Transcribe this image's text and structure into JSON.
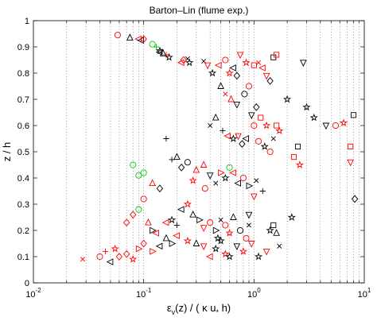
{
  "chart_data": {
    "type": "scatter",
    "title": "Barton–Lin (flume exp.)",
    "xlabel_parts": {
      "main": "ε",
      "sub": "v",
      "rest": "(z) / ( κ u",
      "sub2": "*",
      "end": " h)"
    },
    "ylabel": "z / h",
    "xscale": "log",
    "xlim": [
      0.01,
      10
    ],
    "ylim": [
      0,
      1
    ],
    "x_ticks": [
      {
        "value": 0.01,
        "base": "10",
        "exp": "-2"
      },
      {
        "value": 0.1,
        "base": "10",
        "exp": "-1"
      },
      {
        "value": 1,
        "base": "10",
        "exp": "0"
      },
      {
        "value": 10,
        "base": "10",
        "exp": "1"
      }
    ],
    "y_ticks": [
      "0",
      "0.1",
      "0.2",
      "0.3",
      "0.4",
      "0.5",
      "0.6",
      "0.7",
      "0.8",
      "0.9",
      "1"
    ],
    "grid": {
      "x_minor_dotted": true,
      "y_major": false
    },
    "colors": {
      "red": "#ff0000",
      "black": "#000000",
      "green": "#00cc00"
    },
    "points": [
      {
        "x": 0.058,
        "y": 0.945,
        "m": "circle",
        "c": "red"
      },
      {
        "x": 0.075,
        "y": 0.935,
        "m": "triangle-up",
        "c": "black"
      },
      {
        "x": 0.09,
        "y": 0.93,
        "m": "triangle-left",
        "c": "red"
      },
      {
        "x": 0.095,
        "y": 0.925,
        "m": "triangle-left",
        "c": "black"
      },
      {
        "x": 0.1,
        "y": 0.93,
        "m": "diamond",
        "c": "red"
      },
      {
        "x": 0.12,
        "y": 0.91,
        "m": "circle",
        "c": "green"
      },
      {
        "x": 0.13,
        "y": 0.9,
        "m": "plus",
        "c": "green"
      },
      {
        "x": 0.14,
        "y": 0.885,
        "m": "star",
        "c": "black"
      },
      {
        "x": 0.15,
        "y": 0.875,
        "m": "triangle-up",
        "c": "black"
      },
      {
        "x": 0.16,
        "y": 0.87,
        "m": "plus",
        "c": "red"
      },
      {
        "x": 0.17,
        "y": 0.86,
        "m": "star",
        "c": "black"
      },
      {
        "x": 0.14,
        "y": 0.88,
        "m": "triangle-left",
        "c": "black"
      },
      {
        "x": 0.22,
        "y": 0.84,
        "m": "triangle-left",
        "c": "red"
      },
      {
        "x": 0.25,
        "y": 0.855,
        "m": "x",
        "c": "black"
      },
      {
        "x": 0.26,
        "y": 0.84,
        "m": "star",
        "c": "black"
      },
      {
        "x": 0.23,
        "y": 0.85,
        "m": "diamond",
        "c": "red"
      },
      {
        "x": 0.35,
        "y": 0.845,
        "m": "x",
        "c": "black"
      },
      {
        "x": 0.38,
        "y": 0.83,
        "m": "triangle-down",
        "c": "red"
      },
      {
        "x": 0.42,
        "y": 0.8,
        "m": "star",
        "c": "black"
      },
      {
        "x": 0.48,
        "y": 0.83,
        "m": "triangle-left",
        "c": "red"
      },
      {
        "x": 0.55,
        "y": 0.85,
        "m": "circle",
        "c": "red"
      },
      {
        "x": 0.6,
        "y": 0.8,
        "m": "star",
        "c": "red"
      },
      {
        "x": 0.65,
        "y": 0.82,
        "m": "triangle-left",
        "c": "black"
      },
      {
        "x": 0.7,
        "y": 0.79,
        "m": "diamond",
        "c": "black"
      },
      {
        "x": 0.75,
        "y": 0.87,
        "m": "triangle-down",
        "c": "red"
      },
      {
        "x": 0.85,
        "y": 0.84,
        "m": "star",
        "c": "red"
      },
      {
        "x": 0.9,
        "y": 0.75,
        "m": "circle",
        "c": "red"
      },
      {
        "x": 1.0,
        "y": 0.83,
        "m": "square",
        "c": "red"
      },
      {
        "x": 1.1,
        "y": 0.84,
        "m": "x",
        "c": "red"
      },
      {
        "x": 1.2,
        "y": 0.82,
        "m": "triangle-left",
        "c": "red"
      },
      {
        "x": 1.3,
        "y": 0.79,
        "m": "triangle-down",
        "c": "red"
      },
      {
        "x": 1.5,
        "y": 0.86,
        "m": "square",
        "c": "black"
      },
      {
        "x": 1.6,
        "y": 0.87,
        "m": "square",
        "c": "red"
      },
      {
        "x": 1.4,
        "y": 0.77,
        "m": "diamond",
        "c": "black"
      },
      {
        "x": 2.8,
        "y": 0.84,
        "m": "triangle-down",
        "c": "black"
      },
      {
        "x": 3.0,
        "y": 0.67,
        "m": "star",
        "c": "black"
      },
      {
        "x": 3.5,
        "y": 0.63,
        "m": "star",
        "c": "black"
      },
      {
        "x": 2.0,
        "y": 0.7,
        "m": "star",
        "c": "black"
      },
      {
        "x": 0.5,
        "y": 0.75,
        "m": "triangle-up",
        "c": "black"
      },
      {
        "x": 0.55,
        "y": 0.72,
        "m": "x",
        "c": "red"
      },
      {
        "x": 0.62,
        "y": 0.7,
        "m": "triangle-up",
        "c": "red"
      },
      {
        "x": 0.7,
        "y": 0.68,
        "m": "triangle-down",
        "c": "black"
      },
      {
        "x": 0.82,
        "y": 0.72,
        "m": "circle",
        "c": "black"
      },
      {
        "x": 0.95,
        "y": 0.64,
        "m": "triangle-down",
        "c": "black"
      },
      {
        "x": 1.0,
        "y": 0.6,
        "m": "circle",
        "c": "red"
      },
      {
        "x": 1.05,
        "y": 0.67,
        "m": "diamond",
        "c": "black"
      },
      {
        "x": 1.15,
        "y": 0.63,
        "m": "square",
        "c": "red"
      },
      {
        "x": 1.3,
        "y": 0.6,
        "m": "star",
        "c": "red"
      },
      {
        "x": 1.6,
        "y": 0.6,
        "m": "square",
        "c": "red"
      },
      {
        "x": 1.7,
        "y": 0.58,
        "m": "star",
        "c": "red"
      },
      {
        "x": 0.45,
        "y": 0.63,
        "m": "triangle-up",
        "c": "black"
      },
      {
        "x": 0.4,
        "y": 0.6,
        "m": "x",
        "c": "black"
      },
      {
        "x": 0.52,
        "y": 0.58,
        "m": "plus",
        "c": "black"
      },
      {
        "x": 0.58,
        "y": 0.56,
        "m": "triangle-left",
        "c": "red"
      },
      {
        "x": 0.65,
        "y": 0.55,
        "m": "star",
        "c": "black"
      },
      {
        "x": 0.72,
        "y": 0.56,
        "m": "triangle-down",
        "c": "red"
      },
      {
        "x": 0.78,
        "y": 0.53,
        "m": "diamond",
        "c": "black"
      },
      {
        "x": 0.85,
        "y": 0.55,
        "m": "triangle-left",
        "c": "black"
      },
      {
        "x": 1.1,
        "y": 0.54,
        "m": "circle",
        "c": "red"
      },
      {
        "x": 1.25,
        "y": 0.52,
        "m": "star",
        "c": "black"
      },
      {
        "x": 1.4,
        "y": 0.5,
        "m": "circle",
        "c": "red"
      },
      {
        "x": 1.5,
        "y": 0.55,
        "m": "x",
        "c": "black"
      },
      {
        "x": 2.5,
        "y": 0.52,
        "m": "square",
        "c": "black"
      },
      {
        "x": 2.3,
        "y": 0.48,
        "m": "square",
        "c": "red"
      },
      {
        "x": 2.6,
        "y": 0.45,
        "m": "star",
        "c": "red"
      },
      {
        "x": 4.5,
        "y": 0.6,
        "m": "triangle-down",
        "c": "black"
      },
      {
        "x": 5.5,
        "y": 0.6,
        "m": "circle",
        "c": "red"
      },
      {
        "x": 6.5,
        "y": 0.61,
        "m": "star",
        "c": "red"
      },
      {
        "x": 8.0,
        "y": 0.64,
        "m": "square",
        "c": "black"
      },
      {
        "x": 7.5,
        "y": 0.46,
        "m": "triangle-down",
        "c": "red"
      },
      {
        "x": 7.5,
        "y": 0.52,
        "m": "square",
        "c": "red"
      },
      {
        "x": 8.2,
        "y": 0.32,
        "m": "diamond",
        "c": "black"
      },
      {
        "x": 0.16,
        "y": 0.55,
        "m": "plus",
        "c": "black"
      },
      {
        "x": 0.2,
        "y": 0.48,
        "m": "triangle-up",
        "c": "black"
      },
      {
        "x": 0.22,
        "y": 0.44,
        "m": "diamond",
        "c": "black"
      },
      {
        "x": 0.25,
        "y": 0.46,
        "m": "circle",
        "c": "black"
      },
      {
        "x": 0.18,
        "y": 0.47,
        "m": "plus",
        "c": "black"
      },
      {
        "x": 0.3,
        "y": 0.43,
        "m": "triangle-up",
        "c": "red"
      },
      {
        "x": 0.35,
        "y": 0.45,
        "m": "triangle-up",
        "c": "red"
      },
      {
        "x": 0.28,
        "y": 0.39,
        "m": "star",
        "c": "red"
      },
      {
        "x": 0.36,
        "y": 0.36,
        "m": "circle",
        "c": "red"
      },
      {
        "x": 0.4,
        "y": 0.41,
        "m": "triangle-down",
        "c": "black"
      },
      {
        "x": 0.45,
        "y": 0.38,
        "m": "x",
        "c": "black"
      },
      {
        "x": 0.5,
        "y": 0.42,
        "m": "triangle-right",
        "c": "red"
      },
      {
        "x": 0.55,
        "y": 0.4,
        "m": "star",
        "c": "black"
      },
      {
        "x": 0.6,
        "y": 0.44,
        "m": "circle",
        "c": "green"
      },
      {
        "x": 0.65,
        "y": 0.42,
        "m": "triangle-left",
        "c": "red"
      },
      {
        "x": 0.72,
        "y": 0.38,
        "m": "triangle-left",
        "c": "black"
      },
      {
        "x": 0.8,
        "y": 0.4,
        "m": "circle",
        "c": "red"
      },
      {
        "x": 0.9,
        "y": 0.37,
        "m": "triangle-right",
        "c": "black"
      },
      {
        "x": 1.05,
        "y": 0.39,
        "m": "x",
        "c": "black"
      },
      {
        "x": 1.2,
        "y": 0.35,
        "m": "plus",
        "c": "black"
      },
      {
        "x": 1.0,
        "y": 0.33,
        "m": "triangle-down",
        "c": "red"
      },
      {
        "x": 0.08,
        "y": 0.45,
        "m": "circle",
        "c": "green"
      },
      {
        "x": 0.09,
        "y": 0.41,
        "m": "circle",
        "c": "green"
      },
      {
        "x": 0.1,
        "y": 0.42,
        "m": "circle",
        "c": "green"
      },
      {
        "x": 0.12,
        "y": 0.38,
        "m": "triangle-up",
        "c": "red"
      },
      {
        "x": 0.14,
        "y": 0.36,
        "m": "diamond",
        "c": "black"
      },
      {
        "x": 0.1,
        "y": 0.32,
        "m": "circle",
        "c": "red"
      },
      {
        "x": 0.09,
        "y": 0.28,
        "m": "circle",
        "c": "green"
      },
      {
        "x": 0.08,
        "y": 0.26,
        "m": "diamond",
        "c": "red"
      },
      {
        "x": 0.07,
        "y": 0.23,
        "m": "diamond",
        "c": "red"
      },
      {
        "x": 0.11,
        "y": 0.23,
        "m": "triangle-up",
        "c": "red"
      },
      {
        "x": 0.12,
        "y": 0.2,
        "m": "triangle-right",
        "c": "black"
      },
      {
        "x": 0.13,
        "y": 0.19,
        "m": "triangle-left",
        "c": "red"
      },
      {
        "x": 0.16,
        "y": 0.23,
        "m": "triangle-left",
        "c": "red"
      },
      {
        "x": 0.18,
        "y": 0.24,
        "m": "star",
        "c": "black"
      },
      {
        "x": 0.2,
        "y": 0.22,
        "m": "plus",
        "c": "black"
      },
      {
        "x": 0.22,
        "y": 0.28,
        "m": "triangle-left",
        "c": "black"
      },
      {
        "x": 0.25,
        "y": 0.3,
        "m": "star",
        "c": "red"
      },
      {
        "x": 0.28,
        "y": 0.26,
        "m": "triangle-up",
        "c": "black"
      },
      {
        "x": 0.32,
        "y": 0.24,
        "m": "triangle-right",
        "c": "black"
      },
      {
        "x": 0.35,
        "y": 0.21,
        "m": "triangle-down",
        "c": "red"
      },
      {
        "x": 0.4,
        "y": 0.23,
        "m": "circle",
        "c": "red"
      },
      {
        "x": 0.45,
        "y": 0.2,
        "m": "triangle-right",
        "c": "black"
      },
      {
        "x": 0.5,
        "y": 0.24,
        "m": "x",
        "c": "black"
      },
      {
        "x": 0.55,
        "y": 0.22,
        "m": "circle",
        "c": "red"
      },
      {
        "x": 0.6,
        "y": 0.19,
        "m": "star",
        "c": "red"
      },
      {
        "x": 0.65,
        "y": 0.25,
        "m": "triangle-up",
        "c": "black"
      },
      {
        "x": 0.75,
        "y": 0.2,
        "m": "circle",
        "c": "black"
      },
      {
        "x": 0.9,
        "y": 0.26,
        "m": "triangle-down",
        "c": "black"
      },
      {
        "x": 1.5,
        "y": 0.22,
        "m": "square",
        "c": "black"
      },
      {
        "x": 1.6,
        "y": 0.19,
        "m": "triangle-up",
        "c": "black"
      },
      {
        "x": 2.2,
        "y": 0.25,
        "m": "star",
        "c": "black"
      },
      {
        "x": 1.4,
        "y": 0.2,
        "m": "star",
        "c": "black"
      },
      {
        "x": 0.028,
        "y": 0.09,
        "m": "x",
        "c": "red"
      },
      {
        "x": 0.04,
        "y": 0.1,
        "m": "circle",
        "c": "red"
      },
      {
        "x": 0.045,
        "y": 0.12,
        "m": "plus",
        "c": "red"
      },
      {
        "x": 0.05,
        "y": 0.08,
        "m": "triangle-left",
        "c": "black"
      },
      {
        "x": 0.055,
        "y": 0.13,
        "m": "star",
        "c": "red"
      },
      {
        "x": 0.06,
        "y": 0.1,
        "m": "diamond",
        "c": "red"
      },
      {
        "x": 0.07,
        "y": 0.11,
        "m": "diamond",
        "c": "red"
      },
      {
        "x": 0.08,
        "y": 0.09,
        "m": "star",
        "c": "red"
      },
      {
        "x": 0.09,
        "y": 0.13,
        "m": "triangle-right",
        "c": "red"
      },
      {
        "x": 0.1,
        "y": 0.15,
        "m": "diamond",
        "c": "red"
      },
      {
        "x": 0.12,
        "y": 0.12,
        "m": "triangle-right",
        "c": "red"
      },
      {
        "x": 0.14,
        "y": 0.14,
        "m": "triangle-left",
        "c": "black"
      },
      {
        "x": 0.16,
        "y": 0.17,
        "m": "triangle-up",
        "c": "black"
      },
      {
        "x": 0.18,
        "y": 0.15,
        "m": "triangle-right",
        "c": "black"
      },
      {
        "x": 0.2,
        "y": 0.18,
        "m": "triangle-left",
        "c": "red"
      },
      {
        "x": 0.25,
        "y": 0.16,
        "m": "star",
        "c": "red"
      },
      {
        "x": 0.3,
        "y": 0.15,
        "m": "triangle-up",
        "c": "black"
      },
      {
        "x": 0.35,
        "y": 0.14,
        "m": "triangle-down",
        "c": "red"
      },
      {
        "x": 0.4,
        "y": 0.1,
        "m": "triangle-left",
        "c": "red"
      },
      {
        "x": 0.45,
        "y": 0.13,
        "m": "star",
        "c": "black"
      },
      {
        "x": 0.5,
        "y": 0.16,
        "m": "star",
        "c": "black"
      },
      {
        "x": 0.55,
        "y": 0.11,
        "m": "star",
        "c": "red"
      },
      {
        "x": 0.6,
        "y": 0.1,
        "m": "star",
        "c": "black"
      },
      {
        "x": 0.7,
        "y": 0.14,
        "m": "triangle-down",
        "c": "black"
      },
      {
        "x": 0.8,
        "y": 0.12,
        "m": "star",
        "c": "red"
      },
      {
        "x": 0.85,
        "y": 0.17,
        "m": "circle",
        "c": "red"
      },
      {
        "x": 0.95,
        "y": 0.15,
        "m": "triangle-down",
        "c": "red"
      },
      {
        "x": 1.1,
        "y": 0.1,
        "m": "star",
        "c": "black"
      },
      {
        "x": 1.3,
        "y": 0.12,
        "m": "triangle-down",
        "c": "red"
      },
      {
        "x": 1.7,
        "y": 0.14,
        "m": "x",
        "c": "black"
      },
      {
        "x": 0.9,
        "y": 0.22,
        "m": "x",
        "c": "black"
      },
      {
        "x": 0.47,
        "y": 0.17,
        "m": "star",
        "c": "black"
      }
    ]
  }
}
